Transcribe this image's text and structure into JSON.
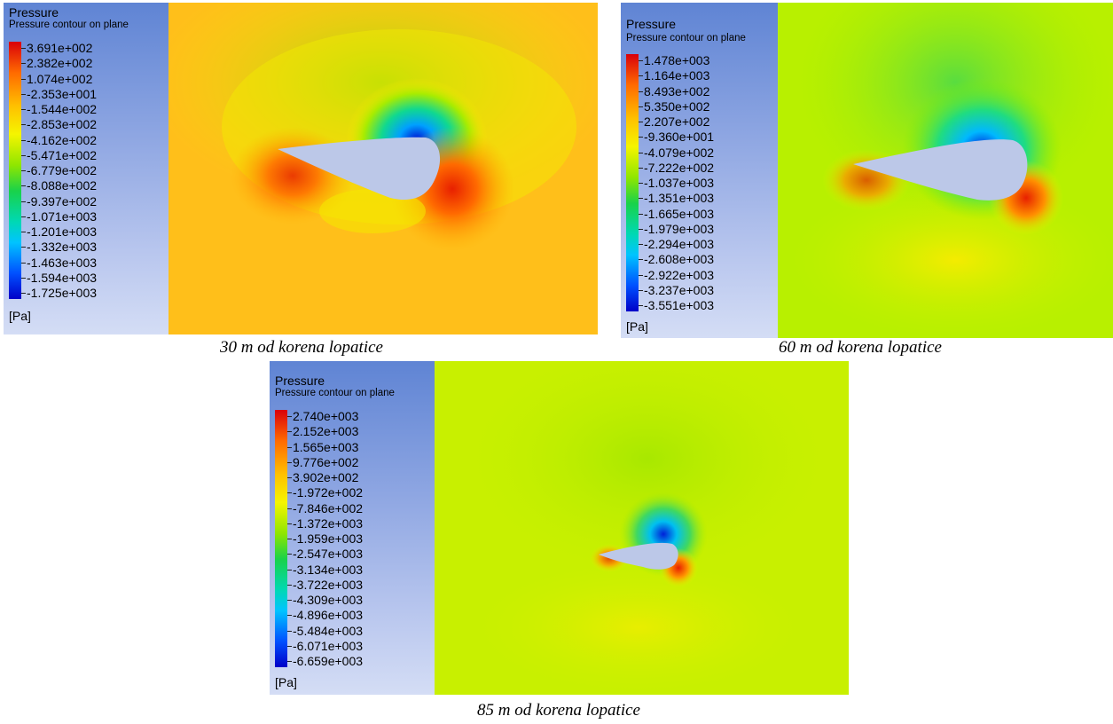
{
  "figures": [
    {
      "legend_title": "Pressure",
      "legend_subtitle": "Pressure contour on plane",
      "labels": [
        "3.691e+002",
        "2.382e+002",
        "1.074e+002",
        "-2.353e+001",
        "-1.544e+002",
        "-2.853e+002",
        "-4.162e+002",
        "-5.471e+002",
        "-6.779e+002",
        "-8.088e+002",
        "-9.397e+002",
        "-1.071e+003",
        "-1.201e+003",
        "-1.332e+003",
        "-1.463e+003",
        "-1.594e+003",
        "-1.725e+003"
      ],
      "unit": "[Pa]",
      "caption": "30 m od korena lopatice",
      "background_color": "#ffbf1a",
      "airfoil_color": "#bcc8e8"
    },
    {
      "legend_title": "Pressure",
      "legend_subtitle": "Pressure contour on plane",
      "labels": [
        "1.478e+003",
        "1.164e+003",
        "8.493e+002",
        "5.350e+002",
        "2.207e+002",
        "-9.360e+001",
        "-4.079e+002",
        "-7.222e+002",
        "-1.037e+003",
        "-1.351e+003",
        "-1.665e+003",
        "-1.979e+003",
        "-2.294e+003",
        "-2.608e+003",
        "-2.922e+003",
        "-3.237e+003",
        "-3.551e+003"
      ],
      "unit": "[Pa]",
      "caption": "60 m od korena lopatice",
      "background_color": "#b8f000",
      "airfoil_color": "#bcc8e8"
    },
    {
      "legend_title": "Pressure",
      "legend_subtitle": "Pressure contour on plane",
      "labels": [
        "2.740e+003",
        "2.152e+003",
        "1.565e+003",
        "9.776e+002",
        "3.902e+002",
        "-1.972e+002",
        "-7.846e+002",
        "-1.372e+003",
        "-1.959e+003",
        "-2.547e+003",
        "-3.134e+003",
        "-3.722e+003",
        "-4.309e+003",
        "-4.896e+003",
        "-5.484e+003",
        "-6.071e+003",
        "-6.659e+003"
      ],
      "unit": "[Pa]",
      "caption": "85 m od korena lopatice",
      "background_color": "#c8f000",
      "airfoil_color": "#bcc8e8"
    }
  ]
}
